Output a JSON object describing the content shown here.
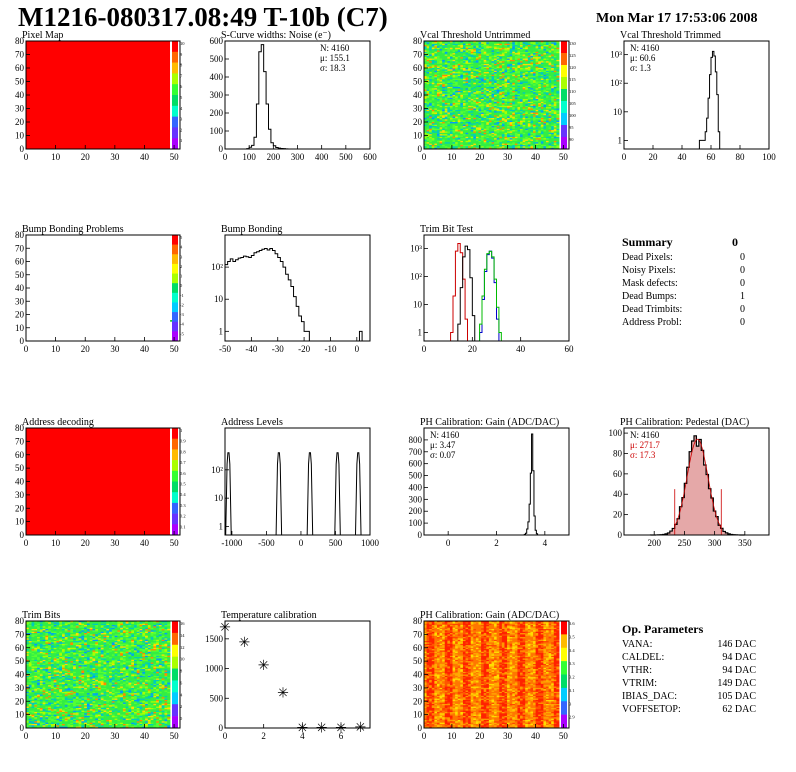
{
  "header": {
    "title": "M1216-080317.08:49 T-10b (C7)",
    "date": "Mon Mar 17 17:53:06 2008"
  },
  "colors": {
    "red": "#ff0000",
    "hist_line": "#000000",
    "trim_red": "#cc0000",
    "trim_blue": "#0000cc",
    "trim_green": "#00bb00",
    "pedestal_fill": "#d06060"
  },
  "chart_data": [
    {
      "id": "pixel-map",
      "type": "heatmap",
      "title": "Pixel Map",
      "xlim": [
        0,
        52
      ],
      "ylim": [
        0,
        80
      ],
      "x_ticks": [
        0,
        10,
        20,
        30,
        40,
        50
      ],
      "y_ticks": [
        0,
        10,
        20,
        30,
        40,
        50,
        60,
        70,
        80
      ],
      "fill": "uniform",
      "uniform_value": 10,
      "palette_labels": [
        "10",
        "9",
        "8",
        "7",
        "6",
        "5",
        "4",
        "3",
        "2",
        "1"
      ]
    },
    {
      "id": "scurve-noise",
      "type": "histogram",
      "title": "S-Curve widths: Noise (e⁻)",
      "xlim": [
        0,
        600
      ],
      "ylim": [
        0,
        600
      ],
      "x_ticks": [
        0,
        100,
        200,
        300,
        400,
        500,
        600
      ],
      "y_ticks": [
        0,
        100,
        200,
        300,
        400,
        500,
        600
      ],
      "stats": [
        "N: 4160",
        "μ: 155.1",
        "σ: 18.3"
      ],
      "bin_width": 10,
      "bins": [
        [
          90,
          2
        ],
        [
          100,
          10
        ],
        [
          110,
          20
        ],
        [
          120,
          65
        ],
        [
          130,
          250
        ],
        [
          140,
          540
        ],
        [
          150,
          580
        ],
        [
          160,
          430
        ],
        [
          170,
          250
        ],
        [
          180,
          110
        ],
        [
          190,
          35
        ],
        [
          200,
          18
        ],
        [
          210,
          8
        ],
        [
          220,
          5
        ],
        [
          230,
          3
        ],
        [
          240,
          2
        ],
        [
          250,
          1
        ]
      ]
    },
    {
      "id": "vcal-untrimmed",
      "type": "heatmap",
      "title": "Vcal Threshold Untrimmed",
      "xlim": [
        0,
        52
      ],
      "ylim": [
        0,
        80
      ],
      "x_ticks": [
        0,
        10,
        20,
        30,
        40,
        50
      ],
      "y_ticks": [
        0,
        10,
        20,
        30,
        40,
        50,
        60,
        70,
        80
      ],
      "fill": "noise_green",
      "palette_labels": [
        "130",
        "125",
        "120",
        "115",
        "110",
        "105",
        "100",
        "95",
        "90"
      ]
    },
    {
      "id": "vcal-trimmed",
      "type": "histogram",
      "title": "Vcal Threshold Trimmed",
      "xlim": [
        0,
        100
      ],
      "ylim_log": [
        0.5,
        3000
      ],
      "log_y": true,
      "x_ticks": [
        0,
        20,
        40,
        60,
        80,
        100
      ],
      "y_ticks": [
        1,
        10,
        100,
        1000
      ],
      "y_tick_labels": [
        "1",
        "10",
        "10²",
        "10³"
      ],
      "stats": [
        "N: 4160",
        "μ: 60.6",
        "σ: 1.3"
      ],
      "bin_width": 1,
      "bins": [
        [
          52,
          1
        ],
        [
          53,
          1
        ],
        [
          54,
          1
        ],
        [
          55,
          1
        ],
        [
          56,
          2
        ],
        [
          57,
          6
        ],
        [
          58,
          30
        ],
        [
          59,
          200
        ],
        [
          60,
          800
        ],
        [
          61,
          1300
        ],
        [
          62,
          900
        ],
        [
          63,
          250
        ],
        [
          64,
          40
        ],
        [
          65,
          2
        ]
      ]
    },
    {
      "id": "bump-problems",
      "type": "heatmap",
      "title": "Bump Bonding Problems",
      "xlim": [
        0,
        52
      ],
      "ylim": [
        0,
        80
      ],
      "x_ticks": [
        0,
        10,
        20,
        30,
        40,
        50
      ],
      "y_ticks": [
        0,
        10,
        20,
        30,
        40,
        50,
        60,
        70,
        80
      ],
      "fill": "sparse",
      "marks": [
        [
          49,
          15
        ]
      ],
      "palette_labels": [
        "5",
        "4",
        "3",
        "2",
        "1",
        "0",
        "-1",
        "-2",
        "-3",
        "-4",
        "-5"
      ]
    },
    {
      "id": "bump-bonding",
      "type": "histogram",
      "title": "Bump Bonding",
      "xlim": [
        -50,
        5
      ],
      "ylim_log": [
        0.5,
        1000
      ],
      "log_y": true,
      "x_ticks": [
        -50,
        -40,
        -30,
        -20,
        -10,
        0
      ],
      "y_ticks": [
        1,
        10,
        100
      ],
      "y_tick_labels": [
        "1",
        "10",
        "10²"
      ],
      "bin_width": 1,
      "bins": [
        [
          -50,
          120
        ],
        [
          -49,
          150
        ],
        [
          -48,
          180
        ],
        [
          -47,
          150
        ],
        [
          -46,
          170
        ],
        [
          -45,
          190
        ],
        [
          -44,
          200
        ],
        [
          -43,
          220
        ],
        [
          -42,
          210
        ],
        [
          -41,
          200
        ],
        [
          -40,
          230
        ],
        [
          -39,
          280
        ],
        [
          -38,
          300
        ],
        [
          -37,
          330
        ],
        [
          -36,
          360
        ],
        [
          -35,
          380
        ],
        [
          -34,
          340
        ],
        [
          -33,
          380
        ],
        [
          -32,
          330
        ],
        [
          -31,
          260
        ],
        [
          -30,
          200
        ],
        [
          -29,
          150
        ],
        [
          -28,
          100
        ],
        [
          -27,
          60
        ],
        [
          -26,
          40
        ],
        [
          -25,
          25
        ],
        [
          -24,
          12
        ],
        [
          -23,
          6
        ],
        [
          -22,
          3
        ],
        [
          -21,
          2
        ],
        [
          -20,
          1
        ],
        [
          -19,
          1
        ],
        [
          1,
          1
        ]
      ]
    },
    {
      "id": "trim-bit-test",
      "type": "histogram",
      "title": "Trim Bit Test",
      "xlim": [
        0,
        60
      ],
      "ylim_log": [
        0.5,
        3000
      ],
      "log_y": true,
      "x_ticks": [
        0,
        20,
        40,
        60
      ],
      "y_ticks": [
        1,
        10,
        100,
        1000
      ],
      "y_tick_labels": [
        "1",
        "10",
        "10²",
        "10³"
      ],
      "bin_width": 1,
      "series_bins": [
        {
          "color": "trim_red",
          "bins": [
            [
              11,
              1
            ],
            [
              12,
              20
            ],
            [
              13,
              800
            ],
            [
              14,
              1500
            ],
            [
              15,
              700
            ],
            [
              16,
              80
            ],
            [
              17,
              3
            ]
          ]
        },
        {
          "color": "#000000",
          "bins": [
            [
              14,
              2
            ],
            [
              15,
              40
            ],
            [
              16,
              500
            ],
            [
              17,
              1200
            ],
            [
              18,
              900
            ],
            [
              19,
              90
            ],
            [
              20,
              4
            ]
          ]
        },
        {
          "color": "trim_blue",
          "bins": [
            [
              23,
              1
            ],
            [
              24,
              15
            ],
            [
              25,
              150
            ],
            [
              26,
              600
            ],
            [
              27,
              800
            ],
            [
              28,
              450
            ],
            [
              29,
              60
            ],
            [
              30,
              3
            ]
          ]
        },
        {
          "color": "trim_green",
          "bins": [
            [
              23,
              2
            ],
            [
              24,
              20
            ],
            [
              25,
              180
            ],
            [
              26,
              650
            ],
            [
              27,
              780
            ],
            [
              28,
              500
            ],
            [
              29,
              80
            ],
            [
              30,
              8
            ],
            [
              31,
              1
            ]
          ]
        }
      ]
    },
    {
      "id": "address-decoding",
      "type": "heatmap",
      "title": "Address decoding",
      "xlim": [
        0,
        52
      ],
      "ylim": [
        0,
        80
      ],
      "x_ticks": [
        0,
        10,
        20,
        30,
        40,
        50
      ],
      "y_ticks": [
        0,
        10,
        20,
        30,
        40,
        50,
        60,
        70,
        80
      ],
      "fill": "uniform",
      "uniform_value": 1,
      "palette_labels": [
        "1",
        "0.9",
        "0.8",
        "0.7",
        "0.6",
        "0.5",
        "0.4",
        "0.3",
        "0.2",
        "0.1"
      ]
    },
    {
      "id": "address-levels",
      "type": "histogram",
      "title": "Address Levels",
      "xlim": [
        -1100,
        1000
      ],
      "ylim_log": [
        0.5,
        3000
      ],
      "log_y": true,
      "x_ticks": [
        -1000,
        -500,
        0,
        500,
        1000
      ],
      "y_ticks": [
        1,
        10,
        100
      ],
      "y_tick_labels": [
        "1",
        "10",
        "10²"
      ],
      "peaks": [
        -1050,
        -320,
        130,
        530,
        830
      ],
      "peak_height": 400,
      "peak_halfwidth": 40
    },
    {
      "id": "ph-gain",
      "type": "histogram",
      "title": "PH Calibration: Gain (ADC/DAC)",
      "xlim": [
        -1,
        5
      ],
      "ylim": [
        0,
        900
      ],
      "x_ticks": [
        0,
        2,
        4
      ],
      "y_ticks": [
        0,
        100,
        200,
        300,
        400,
        500,
        600,
        700,
        800
      ],
      "stats": [
        "N: 4160",
        "μ: 3.47",
        "σ: 0.07"
      ],
      "bin_width": 0.05,
      "bins": [
        [
          3.15,
          5
        ],
        [
          3.2,
          15
        ],
        [
          3.25,
          50
        ],
        [
          3.3,
          110
        ],
        [
          3.35,
          260
        ],
        [
          3.4,
          520
        ],
        [
          3.45,
          850
        ],
        [
          3.5,
          540
        ],
        [
          3.55,
          160
        ],
        [
          3.6,
          40
        ],
        [
          3.65,
          10
        ]
      ]
    },
    {
      "id": "ph-pedestal",
      "type": "histogram",
      "title": "PH Calibration: Pedestal (DAC)",
      "xlim": [
        150,
        390
      ],
      "ylim": [
        0,
        105
      ],
      "x_ticks": [
        200,
        250,
        300,
        350
      ],
      "y_ticks": [
        0,
        20,
        40,
        60,
        80,
        100
      ],
      "stats": [
        "N: 4160",
        "μ: 271.7",
        "σ: 17.3"
      ],
      "stats_colors": [
        "#000000",
        "#cc0000",
        "#cc0000"
      ],
      "gauss": {
        "mean": 271.7,
        "sigma": 17.3,
        "amplitude": 94
      },
      "fit_range": [
        234,
        311
      ]
    },
    {
      "id": "trim-bits",
      "type": "heatmap",
      "title": "Trim Bits",
      "xlim": [
        0,
        52
      ],
      "ylim": [
        0,
        80
      ],
      "x_ticks": [
        0,
        10,
        20,
        30,
        40,
        50
      ],
      "y_ticks": [
        0,
        10,
        20,
        30,
        40,
        50,
        60,
        70,
        80
      ],
      "fill": "noise_green",
      "palette_labels": [
        "16",
        "14",
        "12",
        "10",
        "8",
        "6",
        "4",
        "2",
        "0"
      ]
    },
    {
      "id": "temperature-calibration",
      "type": "scatter",
      "title": "Temperature calibration",
      "xlim": [
        0,
        7.5
      ],
      "ylim": [
        0,
        1800
      ],
      "x_ticks": [
        0,
        2,
        4,
        6
      ],
      "y_ticks": [
        0,
        500,
        1000,
        1500
      ],
      "x": [
        0,
        1,
        2,
        3,
        4,
        5,
        6,
        7
      ],
      "y": [
        1700,
        1450,
        1060,
        600,
        10,
        10,
        10,
        20
      ]
    },
    {
      "id": "ph-gain-map",
      "type": "heatmap",
      "title": "PH Calibration: Gain (ADC/DAC)",
      "xlim": [
        0,
        52
      ],
      "ylim": [
        0,
        80
      ],
      "x_ticks": [
        0,
        10,
        20,
        30,
        40,
        50
      ],
      "y_ticks": [
        0,
        10,
        20,
        30,
        40,
        50,
        60,
        70,
        80
      ],
      "fill": "columns_orange",
      "palette_labels": [
        "3.6",
        "3.5",
        "3.4",
        "3.3",
        "3.2",
        "3.1",
        "3",
        "2.9"
      ]
    }
  ],
  "summary": {
    "title": "Summary",
    "total": "0",
    "rows": [
      {
        "label": "Dead Pixels:",
        "value": "0"
      },
      {
        "label": "Noisy Pixels:",
        "value": "0"
      },
      {
        "label": "Mask defects:",
        "value": "0"
      },
      {
        "label": "Dead Bumps:",
        "value": "1"
      },
      {
        "label": "Dead Trimbits:",
        "value": "0"
      },
      {
        "label": "Address Probl:",
        "value": "0"
      }
    ]
  },
  "op_params": {
    "title": "Op. Parameters",
    "rows": [
      {
        "label": "VANA:",
        "value": "146 DAC"
      },
      {
        "label": "CALDEL:",
        "value": "94 DAC"
      },
      {
        "label": "VTHR:",
        "value": "94 DAC"
      },
      {
        "label": "VTRIM:",
        "value": "149 DAC"
      },
      {
        "label": "IBIAS_DAC:",
        "value": "105 DAC"
      },
      {
        "label": "VOFFSETOP:",
        "value": "62 DAC"
      }
    ]
  }
}
